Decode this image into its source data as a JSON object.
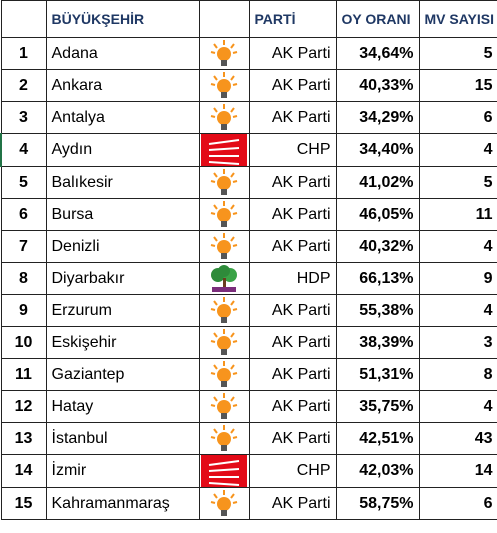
{
  "table": {
    "header": [
      "BÜYÜKŞEHİR",
      "PARTİ",
      "OY ORANI",
      "MV SAYISI"
    ],
    "rows": [
      [
        1,
        "Adana",
        "AK Parti",
        "34,64%",
        5
      ],
      [
        2,
        "Ankara",
        "AK Parti",
        "40,33%",
        15
      ],
      [
        3,
        "Antalya",
        "AK Parti",
        "34,29%",
        6
      ],
      [
        4,
        "Aydın",
        "CHP",
        "34,40%",
        4
      ],
      [
        5,
        "Balıkesir",
        "AK Parti",
        "41,02%",
        5
      ],
      [
        6,
        "Bursa",
        "AK Parti",
        "46,05%",
        11
      ],
      [
        7,
        "Denizli",
        "AK Parti",
        "40,32%",
        4
      ],
      [
        8,
        "Diyarbakır",
        "HDP",
        "66,13%",
        9
      ],
      [
        9,
        "Erzurum",
        "AK Parti",
        "55,38%",
        4
      ],
      [
        10,
        "Eskişehir",
        "AK Parti",
        "38,39%",
        3
      ],
      [
        11,
        "Gaziantep",
        "AK Parti",
        "51,31%",
        8
      ],
      [
        12,
        "Hatay",
        "AK Parti",
        "35,75%",
        4
      ],
      [
        13,
        "İstanbul",
        "AK Parti",
        "42,51%",
        43
      ],
      [
        14,
        "İzmir",
        "CHP",
        "42,03%",
        14
      ],
      [
        15,
        "Kahramanmaraş",
        "AK Parti",
        "58,75%",
        6
      ]
    ]
  }
}
